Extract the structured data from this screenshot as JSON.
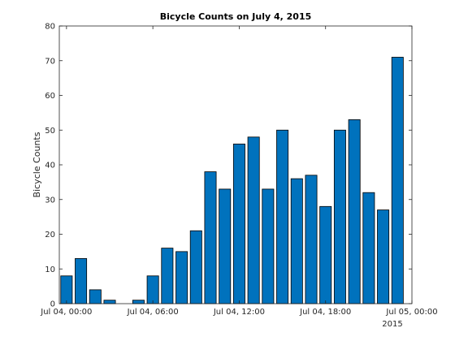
{
  "chart_data": {
    "type": "bar",
    "title": "Bicycle Counts on July 4, 2015",
    "xlabel": "",
    "ylabel": "Bicycle Counts",
    "x_tick_labels": [
      "Jul 04, 00:00",
      "Jul 04, 06:00",
      "Jul 04, 12:00",
      "Jul 04, 18:00",
      "Jul 05, 00:00"
    ],
    "x_secondary_label": "2015",
    "categories": [
      "00:00",
      "01:00",
      "02:00",
      "03:00",
      "04:00",
      "05:00",
      "06:00",
      "07:00",
      "08:00",
      "09:00",
      "10:00",
      "11:00",
      "12:00",
      "13:00",
      "14:00",
      "15:00",
      "16:00",
      "17:00",
      "18:00",
      "19:00",
      "20:00",
      "21:00",
      "22:00",
      "23:00"
    ],
    "values": [
      8,
      13,
      4,
      1,
      0,
      1,
      8,
      16,
      15,
      21,
      38,
      33,
      46,
      48,
      33,
      50,
      36,
      37,
      28,
      50,
      53,
      32,
      27,
      71
    ],
    "ylim": [
      0,
      80
    ],
    "y_ticks": [
      0,
      10,
      20,
      30,
      40,
      50,
      60,
      70,
      80
    ],
    "grid": false,
    "bar_color": "#0072BD"
  }
}
